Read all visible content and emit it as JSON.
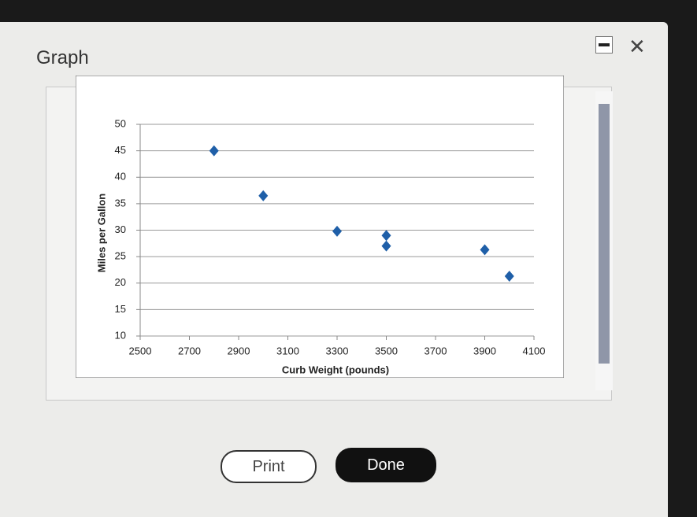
{
  "dialog": {
    "title": "Graph",
    "buttons": {
      "print": "Print",
      "done": "Done"
    }
  },
  "chart_data": {
    "type": "scatter",
    "x_label": "Curb Weight (pounds)",
    "y_label": "Miles per Gallon",
    "series": [
      {
        "color": "#1f5fa8",
        "x": [
          2800,
          3000,
          3300,
          3500,
          3500,
          3900,
          4000
        ],
        "values": [
          45,
          36.5,
          29.8,
          29,
          27,
          26.3,
          21.3
        ]
      }
    ],
    "xlim": [
      2500,
      4100
    ],
    "xticks": [
      2500,
      2700,
      2900,
      3100,
      3300,
      3500,
      3700,
      3900,
      4100
    ],
    "ylim": [
      10,
      50
    ],
    "yticks": [
      10,
      15,
      20,
      25,
      30,
      35,
      40,
      45,
      50
    ],
    "grid": true
  }
}
